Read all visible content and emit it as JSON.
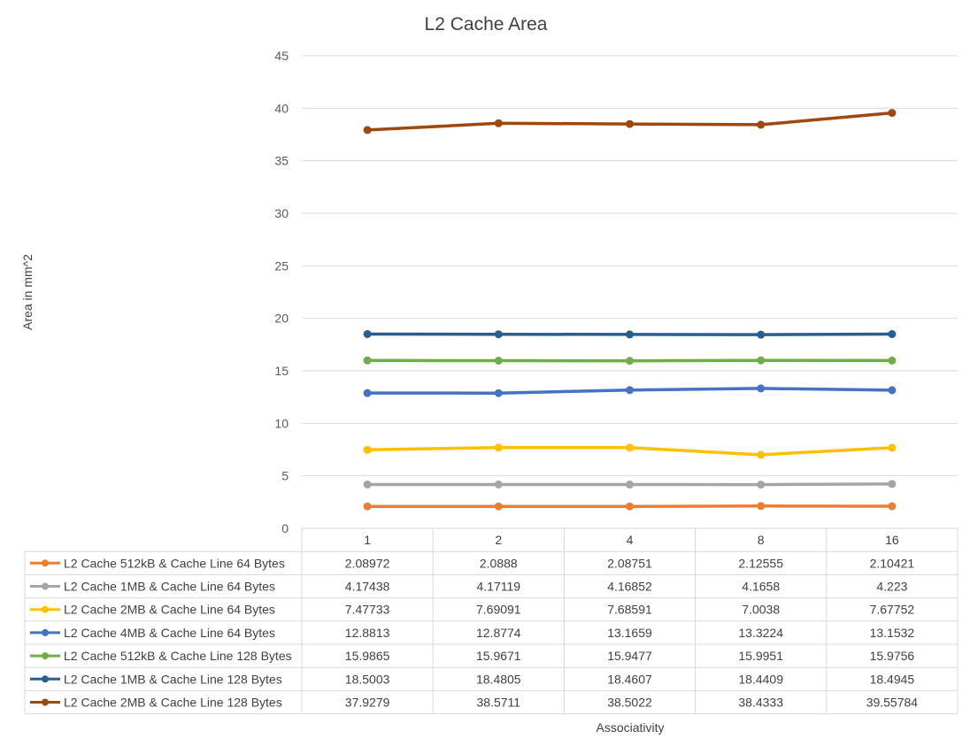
{
  "chart_data": {
    "type": "line",
    "title": "L2 Cache Area",
    "xlabel": "Associativity",
    "ylabel": "Area in mm^2",
    "categories": [
      "1",
      "2",
      "4",
      "8",
      "16"
    ],
    "ylim": [
      0,
      45
    ],
    "yticks": [
      0,
      5,
      10,
      15,
      20,
      25,
      30,
      35,
      40,
      45
    ],
    "grid": true,
    "legend": "data-table",
    "series": [
      {
        "name": "L2 Cache 512kB & Cache Line 64 Bytes",
        "color": "#ED7D31",
        "values": [
          2.08972,
          2.0888,
          2.08751,
          2.12555,
          2.10421
        ],
        "labels": [
          "2.08972",
          "2.0888",
          "2.08751",
          "2.12555",
          "2.10421"
        ]
      },
      {
        "name": "L2 Cache 1MB & Cache Line 64 Bytes",
        "color": "#A5A5A5",
        "values": [
          4.17438,
          4.17119,
          4.16852,
          4.1658,
          4.223
        ],
        "labels": [
          "4.17438",
          "4.17119",
          "4.16852",
          "4.1658",
          "4.223"
        ]
      },
      {
        "name": "L2 Cache 2MB & Cache Line 64 Bytes",
        "color": "#FFC000",
        "values": [
          7.47733,
          7.69091,
          7.68591,
          7.0038,
          7.67752
        ],
        "labels": [
          "7.47733",
          "7.69091",
          "7.68591",
          "7.0038",
          "7.67752"
        ]
      },
      {
        "name": "L2 Cache 4MB & Cache Line 64 Bytes",
        "color": "#4472C4",
        "values": [
          12.8813,
          12.8774,
          13.1659,
          13.3224,
          13.1532
        ],
        "labels": [
          "12.8813",
          "12.8774",
          "13.1659",
          "13.3224",
          "13.1532"
        ]
      },
      {
        "name": "L2 Cache 512kB & Cache Line 128 Bytes",
        "color": "#70AD47",
        "values": [
          15.9865,
          15.9671,
          15.9477,
          15.9951,
          15.9756
        ],
        "labels": [
          "15.9865",
          "15.9671",
          "15.9477",
          "15.9951",
          "15.9756"
        ]
      },
      {
        "name": "L2 Cache 1MB & Cache Line 128 Bytes",
        "color": "#255E91",
        "values": [
          18.5003,
          18.4805,
          18.4607,
          18.4409,
          18.4945
        ],
        "labels": [
          "18.5003",
          "18.4805",
          "18.4607",
          "18.4409",
          "18.4945"
        ]
      },
      {
        "name": "L2 Cache 2MB & Cache Line 128 Bytes",
        "color": "#9E480E",
        "values": [
          37.9279,
          38.5711,
          38.5022,
          38.4333,
          39.55784
        ],
        "labels": [
          "37.9279",
          "38.5711",
          "38.5022",
          "38.4333",
          "39.55784"
        ]
      }
    ]
  }
}
